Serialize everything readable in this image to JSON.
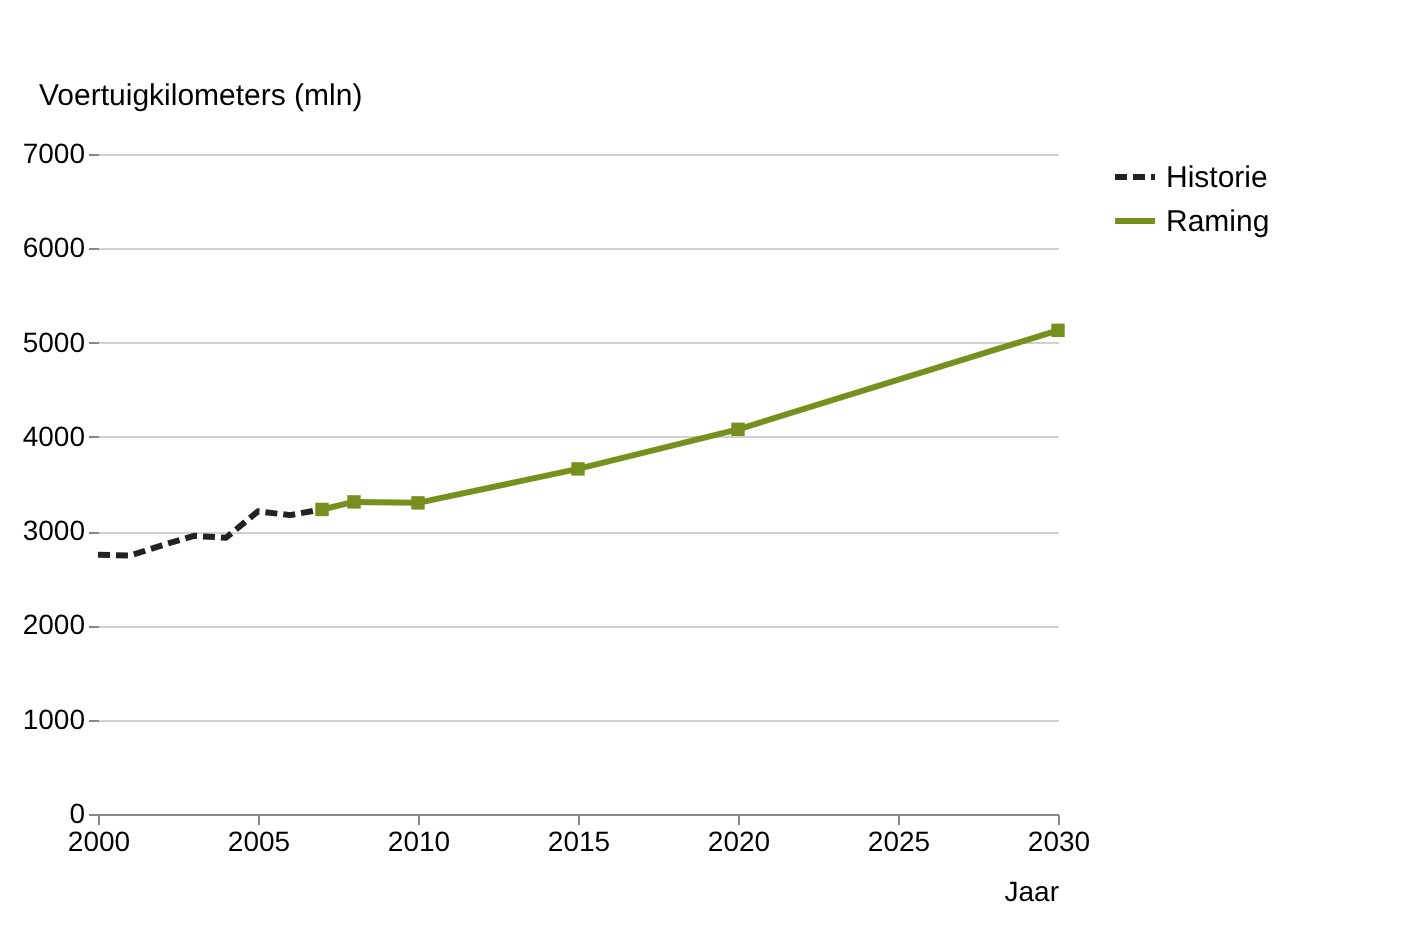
{
  "chart_data": {
    "type": "line",
    "xlabel": "Jaar",
    "ylabel": "Voertuigkilometers (mln)",
    "xlim": [
      2000,
      2030
    ],
    "xticks": [
      2000,
      2005,
      2010,
      2015,
      2020,
      2025,
      2030
    ],
    "ylim": [
      0,
      7000
    ],
    "yticks": [
      0,
      1000,
      2000,
      3000,
      4000,
      5000,
      6000,
      7000
    ],
    "grid": "y",
    "legend": "top right",
    "series": [
      {
        "name": "Historie",
        "color": "#222222",
        "line_style": "dashed",
        "marker": "none",
        "x": [
          2000,
          2001,
          2002,
          2003,
          2004,
          2005,
          2006,
          2007
        ],
        "values": [
          2750,
          2740,
          2850,
          2950,
          2930,
          3210,
          3170,
          3230
        ]
      },
      {
        "name": "Raming",
        "color": "#76901e",
        "line_style": "solid",
        "marker": "square",
        "x": [
          2007,
          2008,
          2010,
          2015,
          2020,
          2030
        ],
        "values": [
          3230,
          3310,
          3300,
          3660,
          4080,
          5130
        ]
      }
    ]
  }
}
